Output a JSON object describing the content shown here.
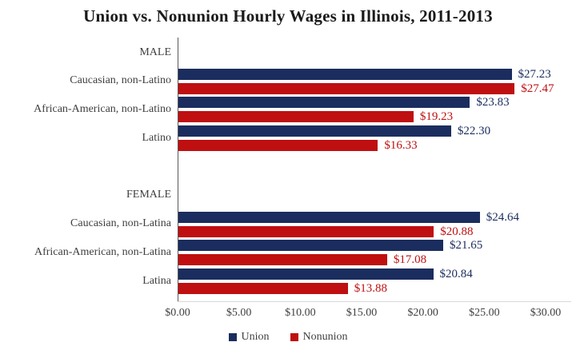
{
  "title": "Union vs. Nonunion Hourly Wages in Illinois, 2011-2013",
  "colors": {
    "union": "#1b2d5e",
    "nonunion": "#bf0f10",
    "axis_line": "#595959",
    "baseline": "#d9d9d9",
    "text": "#3f3f3f",
    "title_text": "#1a1a1a"
  },
  "legend": {
    "items": [
      {
        "label": "Union",
        "color": "#1b2d5e"
      },
      {
        "label": "Nonunion",
        "color": "#bf0f10"
      }
    ]
  },
  "chart_data": {
    "type": "bar",
    "orientation": "horizontal",
    "title": "Union vs. Nonunion Hourly Wages in Illinois, 2011-2013",
    "xlabel": "",
    "ylabel": "",
    "xlim": [
      0,
      30
    ],
    "x_tick_labels": [
      "$0.00",
      "$5.00",
      "$10.00",
      "$15.00",
      "$20.00",
      "$25.00",
      "$30.00"
    ],
    "grid": false,
    "legend_position": "bottom",
    "series": [
      {
        "name": "Union",
        "color": "#1b2d5e"
      },
      {
        "name": "Nonunion",
        "color": "#bf0f10"
      }
    ],
    "rows": [
      {
        "type": "header",
        "label": "MALE"
      },
      {
        "type": "group",
        "label": "Caucasian, non-Latino",
        "union": 27.23,
        "nonunion": 27.47,
        "union_label": "$27.23",
        "nonunion_label": "$27.47"
      },
      {
        "type": "group",
        "label": "African-American, non-Latino",
        "union": 23.83,
        "nonunion": 19.23,
        "union_label": "$23.83",
        "nonunion_label": "$19.23"
      },
      {
        "type": "group",
        "label": "Latino",
        "union": 22.3,
        "nonunion": 16.33,
        "union_label": "$22.30",
        "nonunion_label": "$16.33"
      },
      {
        "type": "spacer",
        "label": ""
      },
      {
        "type": "header",
        "label": "FEMALE"
      },
      {
        "type": "group",
        "label": "Caucasian, non-Latina",
        "union": 24.64,
        "nonunion": 20.88,
        "union_label": "$24.64",
        "nonunion_label": "$20.88"
      },
      {
        "type": "group",
        "label": "African-American, non-Latina",
        "union": 21.65,
        "nonunion": 17.08,
        "union_label": "$21.65",
        "nonunion_label": "$17.08"
      },
      {
        "type": "group",
        "label": "Latina",
        "union": 20.84,
        "nonunion": 13.88,
        "union_label": "$20.84",
        "nonunion_label": "$13.88"
      }
    ]
  }
}
